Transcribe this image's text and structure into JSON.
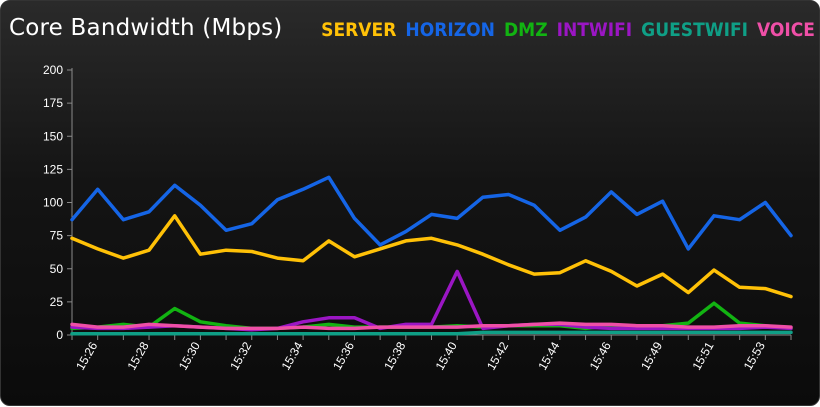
{
  "chart_data": {
    "type": "line",
    "title": "Core Bandwidth (Mbps)",
    "xlabel": "",
    "ylabel": "",
    "ylim": [
      0,
      200
    ],
    "y_ticks": [
      "0",
      "25",
      "50",
      "75",
      "100",
      "125",
      "150",
      "175",
      "200"
    ],
    "y_tick_values": [
      0,
      25,
      50,
      75,
      100,
      125,
      150,
      175,
      200
    ],
    "x_ticks": [
      "15:26",
      "15:28",
      "15:30",
      "15:32",
      "15:34",
      "15:36",
      "15:38",
      "15:40",
      "15:42",
      "15:44",
      "15:46",
      "15:49",
      "15:51",
      "15:53"
    ],
    "grid": false,
    "legend_position": "top-right",
    "series": [
      {
        "name": "SERVER",
        "color": "#ffc107",
        "values": [
          73,
          65,
          58,
          64,
          90,
          61,
          64,
          63,
          58,
          56,
          71,
          59,
          65,
          71,
          73,
          68,
          61,
          53,
          46,
          47,
          56,
          48,
          37,
          46,
          32,
          49,
          36,
          35,
          29
        ]
      },
      {
        "name": "HORIZON",
        "color": "#1565e6",
        "values": [
          87,
          110,
          87,
          93,
          113,
          98,
          79,
          84,
          102,
          110,
          119,
          88,
          68,
          78,
          91,
          88,
          104,
          106,
          98,
          79,
          89,
          108,
          91,
          101,
          65,
          90,
          87,
          100,
          75
        ]
      },
      {
        "name": "DMZ",
        "color": "#12b312",
        "values": [
          5,
          6,
          8,
          6,
          20,
          10,
          7,
          5,
          5,
          6,
          8,
          6,
          6,
          6,
          6,
          7,
          6,
          7,
          7,
          7,
          5,
          7,
          6,
          7,
          9,
          24,
          9,
          7,
          5
        ]
      },
      {
        "name": "INTWIFI",
        "color": "#9b16c4",
        "values": [
          6,
          5,
          5,
          6,
          7,
          6,
          5,
          4,
          5,
          10,
          13,
          13,
          5,
          8,
          8,
          48,
          5,
          7,
          8,
          8,
          6,
          5,
          5,
          5,
          5,
          5,
          5,
          6,
          5
        ]
      },
      {
        "name": "GUESTWIFI",
        "color": "#0f9f86",
        "values": [
          1,
          1,
          1,
          1,
          1,
          1,
          1,
          1,
          1,
          1,
          1,
          1,
          1,
          1,
          1,
          1,
          2,
          2,
          2,
          2,
          2,
          2,
          2,
          2,
          2,
          2,
          2,
          2,
          2
        ]
      },
      {
        "name": "VOICE",
        "color": "#ef4fa7",
        "values": [
          8,
          6,
          6,
          8,
          7,
          6,
          5,
          5,
          5,
          6,
          5,
          5,
          6,
          6,
          6,
          6,
          7,
          7,
          8,
          9,
          8,
          8,
          7,
          7,
          6,
          6,
          7,
          7,
          6
        ]
      }
    ]
  }
}
